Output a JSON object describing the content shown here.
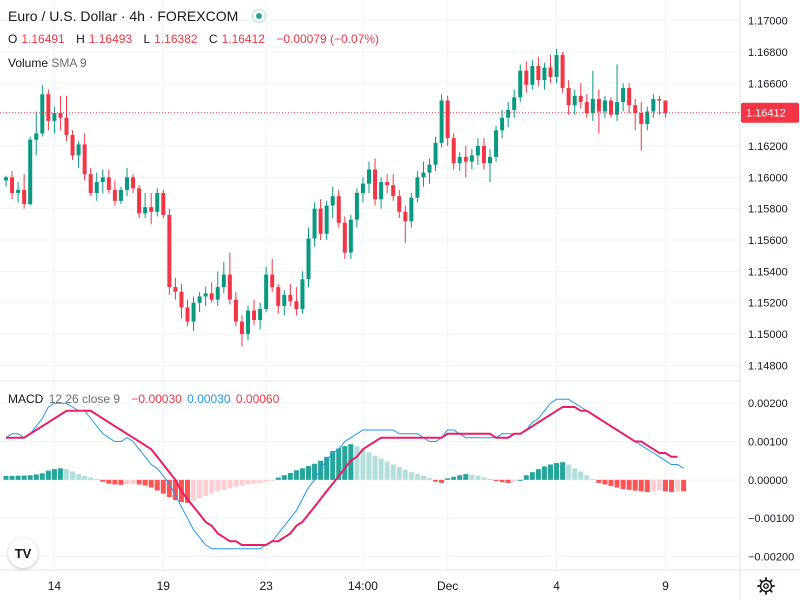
{
  "header": {
    "symbol": "Euro / U.S. Dollar · 4h · FOREXCOM",
    "open_label": "O",
    "open": "1.16491",
    "high_label": "H",
    "high": "1.16493",
    "low_label": "L",
    "low": "1.16382",
    "close_label": "C",
    "close": "1.16412",
    "change": "−0.00079 (−0.07%)"
  },
  "volume_indicator": {
    "label": "Volume",
    "params": "SMA 9"
  },
  "macd_indicator": {
    "label": "MACD",
    "params": "12 26 close 9",
    "hist_value": "−0.00030",
    "macd_value": "0.00030",
    "signal_value": "0.00060"
  },
  "colors": {
    "up": "#089981",
    "down": "#f23645",
    "hist_up_strong": "#26a69a",
    "hist_up_weak": "#b2dfdb",
    "hist_down_strong": "#ff5252",
    "hist_down_weak": "#ffcdd2",
    "macd_line": "#2196f3",
    "signal_line": "#e91e63"
  },
  "logo_text": "TV",
  "chart_data": [
    {
      "type": "candlestick",
      "title": "Euro / U.S. Dollar · 4h · FOREXCOM",
      "ylim": [
        1.1472,
        1.1708
      ],
      "y_ticks": [
        "1.17000",
        "1.16800",
        "1.16600",
        "1.16400",
        "1.16200",
        "1.16000",
        "1.15800",
        "1.15600",
        "1.15400",
        "1.15200",
        "1.15000",
        "1.14800"
      ],
      "last_price": 1.16412,
      "last_price_label": "1.16412",
      "x_ticks": [
        {
          "index": 8,
          "label": "14"
        },
        {
          "index": 26,
          "label": "19"
        },
        {
          "index": 43,
          "label": "23"
        },
        {
          "index": 59,
          "label": "14:00"
        },
        {
          "index": 73,
          "label": "Dec"
        },
        {
          "index": 91,
          "label": "4"
        },
        {
          "index": 109,
          "label": "9"
        }
      ],
      "candles": [
        [
          1.1598,
          1.1601,
          1.1594,
          1.16
        ],
        [
          1.16,
          1.1604,
          1.1586,
          1.159
        ],
        [
          1.159,
          1.1597,
          1.1584,
          1.1592
        ],
        [
          1.1592,
          1.1602,
          1.158,
          1.1583
        ],
        [
          1.1583,
          1.1626,
          1.1582,
          1.1624
        ],
        [
          1.1624,
          1.1642,
          1.1614,
          1.1628
        ],
        [
          1.1628,
          1.1659,
          1.1626,
          1.1653
        ],
        [
          1.1653,
          1.1656,
          1.163,
          1.1636
        ],
        [
          1.1636,
          1.1645,
          1.1628,
          1.1641
        ],
        [
          1.1641,
          1.1652,
          1.163,
          1.1638
        ],
        [
          1.1638,
          1.1652,
          1.1623,
          1.1627
        ],
        [
          1.1627,
          1.163,
          1.1611,
          1.1614
        ],
        [
          1.1614,
          1.1623,
          1.1606,
          1.1621
        ],
        [
          1.1621,
          1.1628,
          1.1598,
          1.1602
        ],
        [
          1.1602,
          1.1606,
          1.1588,
          1.159
        ],
        [
          1.159,
          1.1603,
          1.1585,
          1.1597
        ],
        [
          1.1597,
          1.1605,
          1.159,
          1.16
        ],
        [
          1.16,
          1.1605,
          1.159,
          1.1592
        ],
        [
          1.1592,
          1.1598,
          1.1582,
          1.1585
        ],
        [
          1.1585,
          1.1594,
          1.1583,
          1.1592
        ],
        [
          1.1592,
          1.1606,
          1.1588,
          1.16
        ],
        [
          1.16,
          1.1602,
          1.159,
          1.1593
        ],
        [
          1.1593,
          1.1595,
          1.1574,
          1.1577
        ],
        [
          1.1577,
          1.159,
          1.1574,
          1.1581
        ],
        [
          1.1581,
          1.159,
          1.157,
          1.1578
        ],
        [
          1.1578,
          1.1593,
          1.1575,
          1.159
        ],
        [
          1.159,
          1.1592,
          1.1574,
          1.1576
        ],
        [
          1.1576,
          1.158,
          1.1525,
          1.153
        ],
        [
          1.153,
          1.1536,
          1.1522,
          1.1527
        ],
        [
          1.1527,
          1.1532,
          1.151,
          1.1517
        ],
        [
          1.1517,
          1.1522,
          1.1505,
          1.1508
        ],
        [
          1.1508,
          1.1524,
          1.1502,
          1.152
        ],
        [
          1.152,
          1.1527,
          1.1514,
          1.1524
        ],
        [
          1.1524,
          1.153,
          1.1518,
          1.1526
        ],
        [
          1.1526,
          1.1533,
          1.152,
          1.1522
        ],
        [
          1.1522,
          1.154,
          1.1518,
          1.153
        ],
        [
          1.153,
          1.1546,
          1.1526,
          1.1538
        ],
        [
          1.1538,
          1.1552,
          1.1519,
          1.1522
        ],
        [
          1.1522,
          1.1527,
          1.1505,
          1.1508
        ],
        [
          1.1508,
          1.1512,
          1.1492,
          1.15
        ],
        [
          1.15,
          1.1518,
          1.1496,
          1.1515
        ],
        [
          1.1515,
          1.1522,
          1.1506,
          1.1509
        ],
        [
          1.1509,
          1.152,
          1.1503,
          1.1516
        ],
        [
          1.1516,
          1.1543,
          1.1514,
          1.1538
        ],
        [
          1.1538,
          1.1548,
          1.1527,
          1.153
        ],
        [
          1.153,
          1.1532,
          1.1513,
          1.1518
        ],
        [
          1.1518,
          1.1528,
          1.1512,
          1.1525
        ],
        [
          1.1525,
          1.1532,
          1.1518,
          1.1521
        ],
        [
          1.1521,
          1.153,
          1.1512,
          1.1516
        ],
        [
          1.1516,
          1.154,
          1.1513,
          1.1535
        ],
        [
          1.1535,
          1.1568,
          1.153,
          1.1561
        ],
        [
          1.1561,
          1.1584,
          1.1556,
          1.158
        ],
        [
          1.158,
          1.1586,
          1.156,
          1.1564
        ],
        [
          1.1564,
          1.1585,
          1.156,
          1.1582
        ],
        [
          1.1582,
          1.1594,
          1.1574,
          1.1588
        ],
        [
          1.1588,
          1.1592,
          1.1568,
          1.1571
        ],
        [
          1.1571,
          1.1575,
          1.1548,
          1.1552
        ],
        [
          1.1552,
          1.1576,
          1.1548,
          1.1573
        ],
        [
          1.1573,
          1.1593,
          1.1568,
          1.159
        ],
        [
          1.159,
          1.16,
          1.1584,
          1.1596
        ],
        [
          1.1596,
          1.161,
          1.159,
          1.1605
        ],
        [
          1.1605,
          1.1612,
          1.1582,
          1.1586
        ],
        [
          1.1586,
          1.16,
          1.158,
          1.1597
        ],
        [
          1.1597,
          1.1602,
          1.159,
          1.1595
        ],
        [
          1.1595,
          1.1602,
          1.1585,
          1.1588
        ],
        [
          1.1588,
          1.1592,
          1.1574,
          1.1578
        ],
        [
          1.1578,
          1.1582,
          1.1558,
          1.1572
        ],
        [
          1.1572,
          1.159,
          1.1568,
          1.1587
        ],
        [
          1.1587,
          1.1604,
          1.1584,
          1.16
        ],
        [
          1.16,
          1.161,
          1.1594,
          1.1603
        ],
        [
          1.1603,
          1.1612,
          1.1596,
          1.1608
        ],
        [
          1.1608,
          1.1626,
          1.1604,
          1.1622
        ],
        [
          1.1622,
          1.1653,
          1.1619,
          1.1649
        ],
        [
          1.1649,
          1.1652,
          1.162,
          1.1625
        ],
        [
          1.1625,
          1.1628,
          1.1605,
          1.1609
        ],
        [
          1.1609,
          1.1616,
          1.1604,
          1.1613
        ],
        [
          1.1613,
          1.162,
          1.16,
          1.161
        ],
        [
          1.161,
          1.1618,
          1.1605,
          1.1614
        ],
        [
          1.1614,
          1.1625,
          1.1608,
          1.162
        ],
        [
          1.162,
          1.1625,
          1.1605,
          1.1609
        ],
        [
          1.1609,
          1.1618,
          1.1597,
          1.1613
        ],
        [
          1.1613,
          1.1633,
          1.161,
          1.163
        ],
        [
          1.163,
          1.1643,
          1.1625,
          1.1638
        ],
        [
          1.1638,
          1.1648,
          1.1632,
          1.1643
        ],
        [
          1.1643,
          1.1656,
          1.1638,
          1.1651
        ],
        [
          1.1651,
          1.1672,
          1.1648,
          1.1668
        ],
        [
          1.1668,
          1.1674,
          1.1654,
          1.1659
        ],
        [
          1.1659,
          1.1675,
          1.1656,
          1.1671
        ],
        [
          1.1671,
          1.1677,
          1.1658,
          1.1662
        ],
        [
          1.1662,
          1.1673,
          1.1656,
          1.167
        ],
        [
          1.167,
          1.1678,
          1.166,
          1.1664
        ],
        [
          1.1664,
          1.1682,
          1.166,
          1.1678
        ],
        [
          1.1678,
          1.168,
          1.1654,
          1.1657
        ],
        [
          1.1657,
          1.1662,
          1.164,
          1.1646
        ],
        [
          1.1646,
          1.1656,
          1.164,
          1.1652
        ],
        [
          1.1652,
          1.166,
          1.1644,
          1.1648
        ],
        [
          1.1648,
          1.1653,
          1.1638,
          1.1641
        ],
        [
          1.1641,
          1.1668,
          1.1636,
          1.165
        ],
        [
          1.165,
          1.1656,
          1.1628,
          1.1642
        ],
        [
          1.1642,
          1.1652,
          1.1638,
          1.1649
        ],
        [
          1.1649,
          1.1651,
          1.1638,
          1.164
        ],
        [
          1.164,
          1.1672,
          1.1636,
          1.1648
        ],
        [
          1.1648,
          1.166,
          1.1642,
          1.1657
        ],
        [
          1.1657,
          1.166,
          1.1641,
          1.1646
        ],
        [
          1.1646,
          1.165,
          1.163,
          1.1641
        ],
        [
          1.1641,
          1.1648,
          1.1617,
          1.1634
        ],
        [
          1.1634,
          1.1645,
          1.163,
          1.1642
        ],
        [
          1.1642,
          1.1653,
          1.1638,
          1.165
        ],
        [
          1.165,
          1.1652,
          1.164,
          1.1649
        ],
        [
          1.1649,
          1.1649,
          1.1638,
          1.1641
        ]
      ]
    },
    {
      "type": "macd",
      "title": "MACD 12 26 close 9",
      "ylim": [
        -0.0023,
        0.0025
      ],
      "y_ticks": [
        "0.00200",
        "0.00100",
        "0.00000",
        "−0.00100",
        "−0.00200"
      ],
      "y_tick_values": [
        0.002,
        0.001,
        0.0,
        -0.001,
        -0.002
      ],
      "macd": [
        0.0011,
        0.0012,
        0.0012,
        0.0011,
        0.0012,
        0.0014,
        0.0016,
        0.0019,
        0.002,
        0.002,
        0.002,
        0.0019,
        0.0018,
        0.0018,
        0.0016,
        0.0014,
        0.0012,
        0.0011,
        0.001,
        0.001,
        0.0011,
        0.001,
        0.0008,
        0.0006,
        0.0004,
        0.0003,
        0.0001,
        -0.0001,
        -0.0004,
        -0.0007,
        -0.001,
        -0.0013,
        -0.0015,
        -0.0017,
        -0.0018,
        -0.0018,
        -0.0018,
        -0.0018,
        -0.0018,
        -0.0018,
        -0.0018,
        -0.0018,
        -0.0018,
        -0.0017,
        -0.0016,
        -0.0014,
        -0.0012,
        -0.001,
        -0.0008,
        -0.0005,
        -0.0002,
        0.0,
        0.0003,
        0.0005,
        0.0007,
        0.0008,
        0.001,
        0.0011,
        0.0012,
        0.0013,
        0.0013,
        0.0013,
        0.0013,
        0.0013,
        0.0013,
        0.0012,
        0.0012,
        0.0012,
        0.0012,
        0.0011,
        0.001,
        0.001,
        0.0011,
        0.0013,
        0.0013,
        0.0012,
        0.0011,
        0.0011,
        0.0011,
        0.0011,
        0.0011,
        0.0011,
        0.0012,
        0.0012,
        0.0012,
        0.0012,
        0.0013,
        0.0015,
        0.0016,
        0.0018,
        0.002,
        0.0021,
        0.0021,
        0.0021,
        0.002,
        0.0019,
        0.0018,
        0.0017,
        0.0016,
        0.0015,
        0.0014,
        0.0013,
        0.0012,
        0.0011,
        0.001,
        0.0009,
        0.0008,
        0.0007,
        0.0006,
        0.0005,
        0.0004,
        0.0004,
        0.0003
      ],
      "signal": [
        0.0011,
        0.0011,
        0.0011,
        0.0011,
        0.0012,
        0.0013,
        0.0014,
        0.0015,
        0.0016,
        0.0017,
        0.0018,
        0.0018,
        0.0018,
        0.0018,
        0.0018,
        0.0017,
        0.0016,
        0.0015,
        0.0014,
        0.0013,
        0.0012,
        0.0011,
        0.001,
        0.0009,
        0.0008,
        0.0006,
        0.0004,
        0.0002,
        0.0,
        -0.0003,
        -0.0005,
        -0.0007,
        -0.0009,
        -0.0011,
        -0.0012,
        -0.0014,
        -0.0015,
        -0.0016,
        -0.0016,
        -0.0017,
        -0.0017,
        -0.0017,
        -0.0017,
        -0.0017,
        -0.0016,
        -0.0016,
        -0.0015,
        -0.0014,
        -0.0012,
        -0.0011,
        -0.0009,
        -0.0007,
        -0.0005,
        -0.0003,
        -0.0001,
        0.0001,
        0.0003,
        0.0005,
        0.0006,
        0.0008,
        0.0009,
        0.001,
        0.0011,
        0.0011,
        0.0011,
        0.0011,
        0.0011,
        0.0011,
        0.0011,
        0.0011,
        0.0011,
        0.0011,
        0.0011,
        0.0012,
        0.0012,
        0.0012,
        0.0012,
        0.0012,
        0.0012,
        0.0012,
        0.0012,
        0.0011,
        0.0011,
        0.0011,
        0.0012,
        0.0012,
        0.0013,
        0.0014,
        0.0015,
        0.0016,
        0.0017,
        0.0018,
        0.0019,
        0.0019,
        0.0019,
        0.0018,
        0.0018,
        0.0017,
        0.0016,
        0.0015,
        0.0014,
        0.0013,
        0.0012,
        0.0011,
        0.001,
        0.001,
        0.0009,
        0.0008,
        0.0007,
        0.0007,
        0.0006,
        0.0006
      ],
      "histogram": [
        0.0001,
        0.0001,
        0.00011,
        0.00011,
        0.00012,
        0.00014,
        0.00017,
        0.00024,
        0.00028,
        0.0003,
        0.00028,
        0.00022,
        0.00015,
        0.0001,
        6e-05,
        2e-05,
        -5e-05,
        -0.0001,
        -0.00012,
        -0.00013,
        -0.00012,
        -0.00011,
        -0.00012,
        -0.00015,
        -0.0002,
        -0.00028,
        -0.00036,
        -0.00045,
        -0.00053,
        -0.00058,
        -0.0006,
        -0.00055,
        -0.00048,
        -0.00042,
        -0.00036,
        -0.0003,
        -0.00026,
        -0.00022,
        -0.00018,
        -0.00015,
        -0.00012,
        -0.0001,
        -8e-05,
        -5e-05,
        -2e-05,
        6e-05,
        0.00012,
        0.00018,
        0.00025,
        0.0003,
        0.00036,
        0.00042,
        0.0005,
        0.0006,
        0.00075,
        0.00082,
        0.00088,
        0.00093,
        0.00088,
        0.0008,
        0.00072,
        0.00063,
        0.00055,
        0.00048,
        0.0004,
        0.00033,
        0.00026,
        0.0002,
        0.00015,
        0.0001,
        5e-05,
        -5e-05,
        -8e-05,
        4e-05,
        8e-05,
        0.00012,
        0.00015,
        0.00013,
        0.0001,
        6e-05,
        2e-05,
        -3e-05,
        -6e-05,
        -8e-05,
        -5e-05,
        0.0,
        0.00012,
        0.0002,
        0.00028,
        0.00035,
        0.0004,
        0.00044,
        0.00046,
        0.0004,
        0.0003,
        0.00022,
        0.00012,
        2e-05,
        -8e-05,
        -0.00012,
        -0.00016,
        -0.0002,
        -0.00024,
        -0.00026,
        -0.00028,
        -0.0003,
        -0.00032,
        -0.0003,
        -0.00028,
        -0.0003,
        -0.00032,
        -0.0003,
        -0.0003
      ]
    }
  ]
}
